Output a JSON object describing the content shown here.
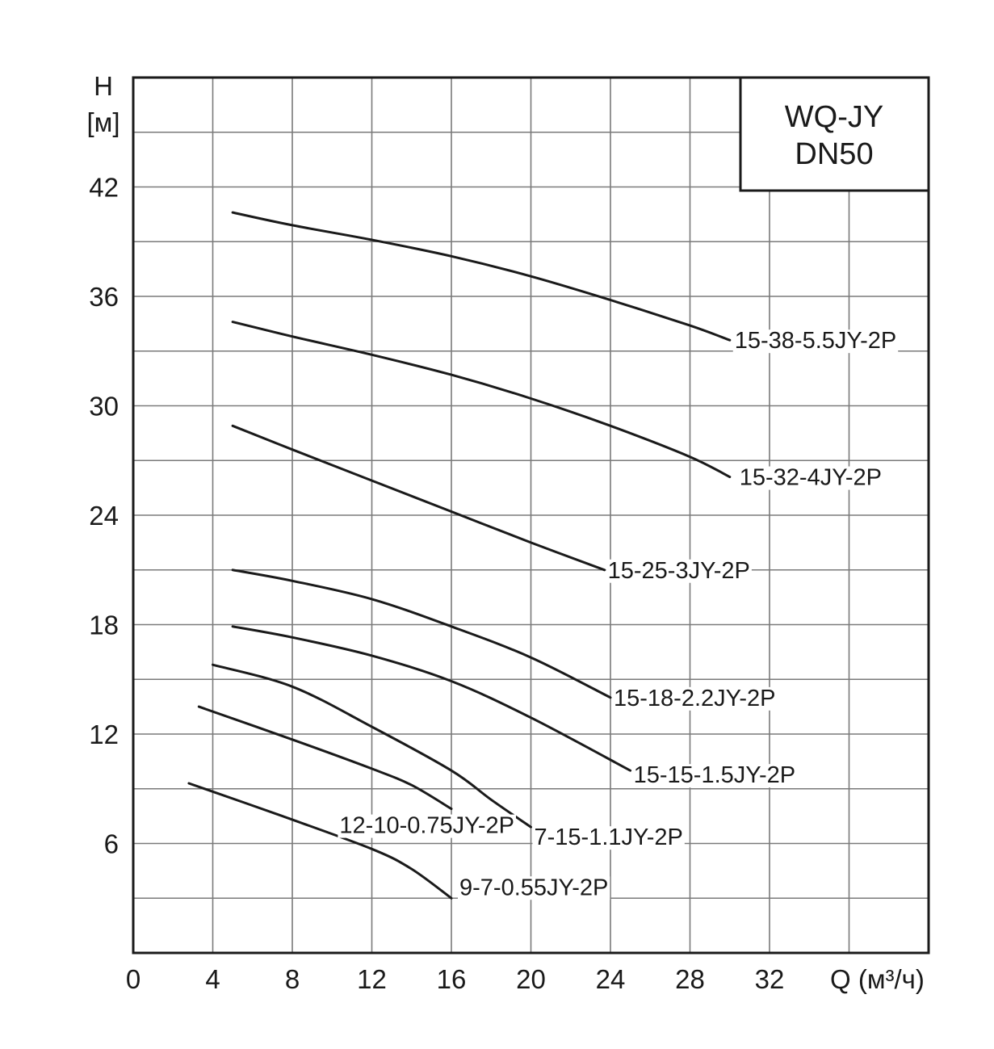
{
  "chart_data": {
    "type": "line",
    "title_lines": [
      "WQ-JY",
      "DN50"
    ],
    "ylabel_lines": [
      "H",
      "[м]"
    ],
    "xlabel": "Q (м³/ч)",
    "xlim": [
      0,
      40
    ],
    "ylim": [
      0,
      48
    ],
    "x_ticks": [
      0,
      4,
      8,
      12,
      16,
      20,
      24,
      28,
      32
    ],
    "y_ticks": [
      6,
      12,
      18,
      24,
      30,
      36,
      42
    ],
    "x_tick_labels": [
      "0",
      "4",
      "8",
      "12",
      "16",
      "20",
      "24",
      "28",
      "32"
    ],
    "y_tick_labels": [
      "6",
      "12",
      "18",
      "24",
      "30",
      "36",
      "42"
    ],
    "grid": true,
    "series": [
      {
        "name": "15-38-5.5JY-2P",
        "x": [
          5,
          8,
          12,
          16,
          20,
          24,
          28,
          30
        ],
        "y": [
          40.6,
          39.9,
          39.1,
          38.2,
          37.1,
          35.8,
          34.4,
          33.6
        ]
      },
      {
        "name": "15-32-4JY-2P",
        "x": [
          5,
          8,
          12,
          16,
          20,
          24,
          28,
          30
        ],
        "y": [
          34.6,
          33.8,
          32.8,
          31.7,
          30.4,
          28.9,
          27.2,
          26.1
        ]
      },
      {
        "name": "15-25-3JY-2P",
        "x": [
          5,
          8,
          12,
          16,
          20,
          23.7
        ],
        "y": [
          28.9,
          27.6,
          25.9,
          24.2,
          22.5,
          21.0
        ]
      },
      {
        "name": "15-18-2.2JY-2P",
        "x": [
          5,
          8,
          12,
          16,
          20,
          24
        ],
        "y": [
          21.0,
          20.4,
          19.4,
          17.9,
          16.2,
          14.0
        ]
      },
      {
        "name": "15-15-1.5JY-2P",
        "x": [
          5,
          8,
          12,
          16,
          20,
          25
        ],
        "y": [
          17.9,
          17.3,
          16.3,
          14.9,
          12.9,
          10.0
        ]
      },
      {
        "name": "7-15-1.1JY-2P",
        "x": [
          4,
          8,
          12,
          16,
          18,
          20
        ],
        "y": [
          15.8,
          14.6,
          12.4,
          10.0,
          8.4,
          6.9
        ]
      },
      {
        "name": "12-10-0.75JY-2P",
        "x": [
          3.3,
          8,
          12,
          14,
          16
        ],
        "y": [
          13.5,
          11.7,
          10.1,
          9.2,
          7.9
        ]
      },
      {
        "name": "9-7-0.55JY-2P",
        "x": [
          2.8,
          7.5,
          12,
          14,
          16
        ],
        "y": [
          9.3,
          7.5,
          5.7,
          4.6,
          3.0
        ]
      }
    ]
  }
}
